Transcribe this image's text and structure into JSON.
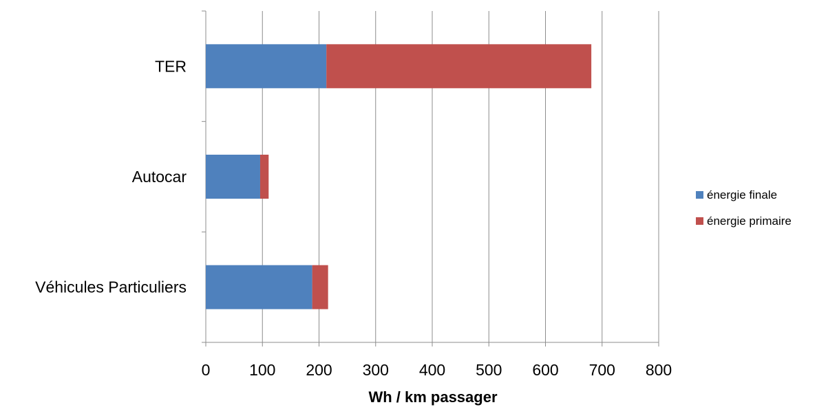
{
  "chart_data": {
    "type": "bar",
    "orientation": "horizontal",
    "stacked": true,
    "categories": [
      "TER",
      "Autocar",
      "Véhicules Particuliers"
    ],
    "series": [
      {
        "name": "énergie finale",
        "color": "#4f81bd",
        "values": [
          213,
          96,
          188
        ]
      },
      {
        "name": "énergie primaire",
        "color": "#c0504d",
        "values": [
          468,
          15,
          28
        ]
      }
    ],
    "xlabel": "Wh / km passager",
    "ylabel": "",
    "xlim": [
      0,
      800
    ],
    "xticks": [
      "0",
      "100",
      "200",
      "300",
      "400",
      "500",
      "600",
      "700",
      "800"
    ],
    "grid": true,
    "legend": "right"
  }
}
